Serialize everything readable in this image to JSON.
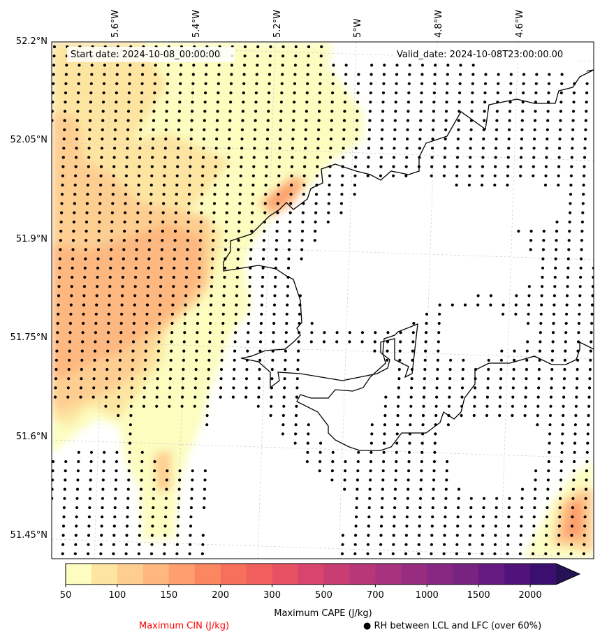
{
  "header": {
    "start_date": "Start date: 2024-10-08_00:00:00",
    "valid_date": "Valid_date: 2024-10-08T23:00:00.00"
  },
  "map": {
    "latitude_labels": [
      "52.2°N",
      "52.05°N",
      "51.9°N",
      "51.75°N",
      "51.6°N",
      "51.45°N"
    ],
    "longitude_labels": [
      "5.6°W",
      "5.4°W",
      "5.2°W",
      "5°W",
      "4.8°W",
      "4.6°W"
    ],
    "gridlines": "dashed light gray",
    "fields": {
      "cape": "Maximum CAPE (J/kg)",
      "cin": "Maximum CIN (J/kg)",
      "rh_dots": "RH between LCL and LFC (over 60%)"
    }
  },
  "colorbar": {
    "title": "Maximum CAPE (J/kg)",
    "extend": "max",
    "levels": [
      50,
      75,
      100,
      125,
      150,
      175,
      200,
      250,
      300,
      400,
      500,
      600,
      700,
      850,
      1000,
      1250,
      1500,
      1750,
      2000
    ],
    "tick_labels": [
      "50",
      "100",
      "150",
      "200",
      "300",
      "500",
      "700",
      "1000",
      "1500",
      "2000"
    ],
    "colors": [
      "#fcfdbf",
      "#fde5a1",
      "#fece91",
      "#feb77e",
      "#fe9f6d",
      "#fb8761",
      "#f7705c",
      "#f1605d",
      "#e75263",
      "#d8456c",
      "#c83e73",
      "#b73779",
      "#a8327d",
      "#982d80",
      "#872781",
      "#782281",
      "#641a80",
      "#51127c",
      "#3b0f70",
      "#251255"
    ]
  },
  "legend": {
    "cin_label": "Maximum CIN (J/kg)",
    "cin_color": "#ff0000",
    "rh_symbol": "●",
    "rh_label": "RH between LCL and LFC (over 60%)"
  }
}
